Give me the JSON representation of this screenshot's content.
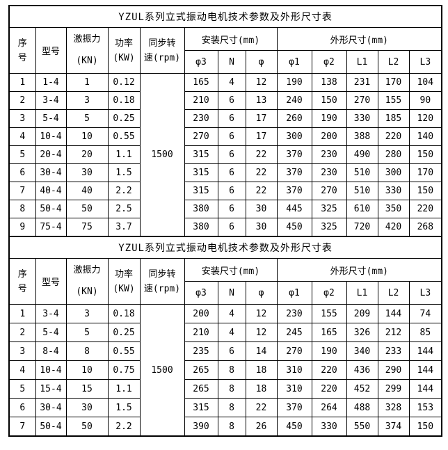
{
  "colors": {
    "background": "#ffffff",
    "border": "#000000",
    "text": "#000000"
  },
  "tables": [
    {
      "title": "YZUL系列立式振动电机技术参数及外形尺寸表",
      "header": {
        "seq_line1": "序",
        "seq_line2": "号",
        "model": "型号",
        "force_line1": "激振力",
        "force_line2": "(KN)",
        "power_line1": "功率",
        "power_line2": "(KW)",
        "speed_line1": "同步转",
        "speed_line2": "速(rpm)",
        "install_group": "安装尺寸(mm)",
        "outline_group": "外形尺寸(mm)",
        "sub_columns": [
          "φ3",
          "N",
          "φ",
          "φ1",
          "φ2",
          "L1",
          "L2",
          "L3"
        ]
      },
      "speed_value": "1500",
      "rows": [
        [
          "1",
          "1-4",
          "1",
          "0.12",
          "165",
          "4",
          "12",
          "190",
          "138",
          "231",
          "170",
          "104"
        ],
        [
          "2",
          "3-4",
          "3",
          "0.18",
          "210",
          "6",
          "13",
          "240",
          "150",
          "270",
          "155",
          "90"
        ],
        [
          "3",
          "5-4",
          "5",
          "0.25",
          "230",
          "6",
          "17",
          "260",
          "190",
          "330",
          "185",
          "120"
        ],
        [
          "4",
          "10-4",
          "10",
          "0.55",
          "270",
          "6",
          "17",
          "300",
          "200",
          "388",
          "220",
          "140"
        ],
        [
          "5",
          "20-4",
          "20",
          "1.1",
          "315",
          "6",
          "22",
          "370",
          "230",
          "490",
          "280",
          "150"
        ],
        [
          "6",
          "30-4",
          "30",
          "1.5",
          "315",
          "6",
          "22",
          "370",
          "230",
          "510",
          "300",
          "170"
        ],
        [
          "7",
          "40-4",
          "40",
          "2.2",
          "315",
          "6",
          "22",
          "370",
          "270",
          "510",
          "330",
          "150"
        ],
        [
          "8",
          "50-4",
          "50",
          "2.5",
          "380",
          "6",
          "30",
          "445",
          "325",
          "610",
          "350",
          "220"
        ],
        [
          "9",
          "75-4",
          "75",
          "3.7",
          "380",
          "6",
          "30",
          "450",
          "325",
          "720",
          "420",
          "268"
        ]
      ]
    },
    {
      "title": "YZUL系列立式振动电机技术参数及外形尺寸表",
      "header": {
        "seq_line1": "序",
        "seq_line2": "号",
        "model": "型号",
        "force_line1": "激振力",
        "force_line2": "(KN)",
        "power_line1": "功率",
        "power_line2": "(KW)",
        "speed_line1": "同步转",
        "speed_line2": "速(rpm)",
        "install_group": "安装尺寸(mm)",
        "outline_group": "外形尺寸(mm)",
        "sub_columns": [
          "φ3",
          "N",
          "φ",
          "φ1",
          "φ2",
          "L1",
          "L2",
          "L3"
        ]
      },
      "speed_value": "1500",
      "rows": [
        [
          "1",
          "3-4",
          "3",
          "0.18",
          "200",
          "4",
          "12",
          "230",
          "155",
          "209",
          "144",
          "74"
        ],
        [
          "2",
          "5-4",
          "5",
          "0.25",
          "210",
          "4",
          "12",
          "245",
          "165",
          "326",
          "212",
          "85"
        ],
        [
          "3",
          "8-4",
          "8",
          "0.55",
          "235",
          "6",
          "14",
          "270",
          "190",
          "340",
          "233",
          "144"
        ],
        [
          "4",
          "10-4",
          "10",
          "0.75",
          "265",
          "8",
          "18",
          "310",
          "220",
          "436",
          "290",
          "144"
        ],
        [
          "5",
          "15-4",
          "15",
          "1.1",
          "265",
          "8",
          "18",
          "310",
          "220",
          "452",
          "299",
          "144"
        ],
        [
          "6",
          "30-4",
          "30",
          "1.5",
          "315",
          "8",
          "22",
          "370",
          "264",
          "488",
          "328",
          "153"
        ],
        [
          "7",
          "50-4",
          "50",
          "2.2",
          "390",
          "8",
          "26",
          "450",
          "330",
          "550",
          "374",
          "150"
        ]
      ]
    }
  ]
}
